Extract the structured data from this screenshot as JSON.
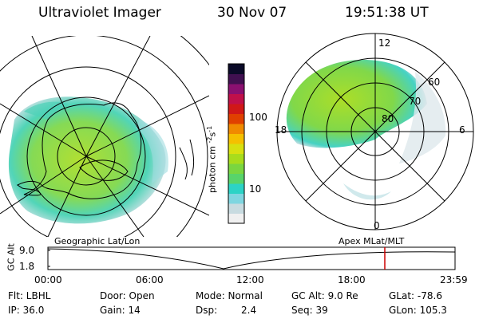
{
  "header": {
    "instrument": "Ultraviolet Imager",
    "date": "30 Nov 07",
    "time": "19:51:38 UT"
  },
  "left_map": {
    "label": "Geographic Lat/Lon"
  },
  "right_map": {
    "label": "Apex MLat/MLT",
    "mlt_labels": {
      "top": "12",
      "left": "18",
      "right": "6",
      "bottom": "0"
    },
    "lat_labels": [
      "60",
      "70",
      "80"
    ]
  },
  "colorbar": {
    "unit_label": "photon cm",
    "unit_sup1": "-2",
    "unit_s": "s",
    "unit_sup2": "-1",
    "ticks": [
      "100",
      "10"
    ],
    "scale": "log",
    "colors": [
      "#f0f0f0",
      "#c8dbe0",
      "#7fd6e0",
      "#2cd3c6",
      "#58d46a",
      "#7ad640",
      "#a8dc1c",
      "#d8e010",
      "#f5c000",
      "#f08a00",
      "#e04000",
      "#d01818",
      "#c0104a",
      "#8a1070",
      "#401050",
      "#0a0a28"
    ]
  },
  "timeline": {
    "axis_label": "GC Alt",
    "y_ticks": [
      "9.0",
      "1.8"
    ],
    "x_ticks": [
      "00:00",
      "06:00",
      "12:00",
      "18:00",
      "23:59"
    ],
    "marker_time": "19:51",
    "marker_color": "#cc0000"
  },
  "footer": {
    "filter_label": "Flt: LBHL",
    "ip_label": "IP: 36.0",
    "door_label": "Door: Open",
    "gain_label": "Gain: 14",
    "mode_label": "Mode: Normal",
    "dsp_label": "Dsp:",
    "dsp_value": "2.4",
    "gcalt_label": "GC Alt: 9.0 Re",
    "seq_label": "Seq: 39",
    "glat_label": "GLat: -78.6",
    "glon_label": "GLon: 105.3"
  }
}
